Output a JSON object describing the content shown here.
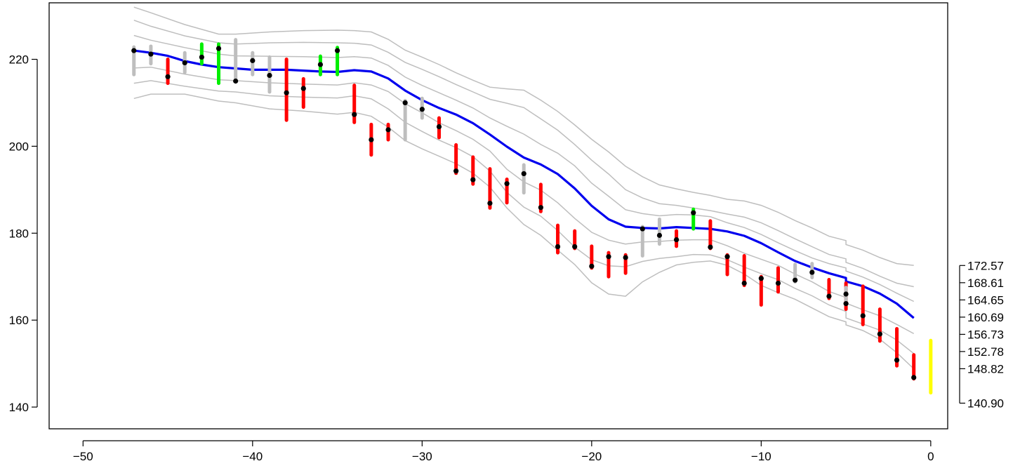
{
  "chart_data": {
    "type": "line",
    "title": "",
    "xlabel": "",
    "ylabel": "",
    "xlim": [
      -52,
      1
    ],
    "ylim": [
      135,
      233
    ],
    "x_ticks": [
      -50,
      -40,
      -30,
      -20,
      -10,
      0
    ],
    "x_tick_labels": [
      "−50",
      "−40",
      "−30",
      "−20",
      "−10",
      "0"
    ],
    "y_ticks": [
      140,
      160,
      180,
      200,
      220
    ],
    "y_tick_labels": [
      "140",
      "160",
      "180",
      "200",
      "220"
    ],
    "right_ticks": [
      172.57,
      168.61,
      164.65,
      160.69,
      156.73,
      152.78,
      148.82,
      140.9
    ],
    "right_tick_labels": [
      "172.57",
      "168.61",
      "164.65",
      "160.69",
      "156.73",
      "152.78",
      "148.82",
      "140.90"
    ],
    "grid": false,
    "colors": {
      "trend": "#0000ee",
      "band": "#bebebe",
      "below": "#ff0000",
      "above": "#00ee00",
      "neutral": "#bebebe",
      "forecast": "#ffff00",
      "point": "#000000"
    },
    "trend": {
      "x": [
        -47,
        -46,
        -45,
        -44,
        -43,
        -42,
        -41,
        -40,
        -39,
        -38,
        -37,
        -36,
        -35,
        -34,
        -33,
        -32,
        -31,
        -30,
        -29,
        -28,
        -27,
        -26,
        -25,
        -24,
        -23,
        -22,
        -21,
        -20,
        -19,
        -18,
        -17,
        -16,
        -15,
        -14,
        -13,
        -12,
        -11,
        -10,
        -9,
        -8,
        -7,
        -6,
        -5,
        -5,
        -4,
        -3,
        -2,
        -1
      ],
      "y": [
        222,
        221.5,
        220.8,
        219.6,
        218.8,
        218.2,
        217.9,
        217.6,
        217.6,
        217.6,
        217.4,
        217.2,
        217.1,
        217.5,
        217.2,
        215.6,
        212.8,
        210.6,
        208.8,
        207.3,
        205.3,
        202.7,
        199.9,
        197.4,
        195.8,
        193.6,
        190.3,
        186.3,
        183.2,
        181.5,
        181.2,
        181.1,
        181.4,
        181.2,
        181.0,
        180.4,
        179.4,
        177.7,
        175.6,
        173.6,
        172.1,
        170.8,
        169.7,
        168.9,
        167.8,
        166.1,
        163.8,
        160.5
      ]
    },
    "bands": [
      {
        "x": [
          -47,
          -46,
          -44,
          -42,
          -41,
          -39,
          -37,
          -35,
          -34,
          -33,
          -32,
          -31,
          -30,
          -29,
          -28,
          -27,
          -26,
          -25,
          -24,
          -23,
          -22,
          -21,
          -20,
          -19,
          -18,
          -17,
          -16,
          -15,
          -14,
          -13,
          -12,
          -11,
          -10,
          -9,
          -8,
          -7,
          -6,
          -5,
          -5,
          -4,
          -3,
          -2,
          -1
        ],
        "y": [
          232,
          230.7,
          228,
          225.8,
          225.8,
          226.3,
          226.6,
          226.7,
          226.6,
          226.3,
          224.6,
          222.1,
          220.5,
          218.8,
          216.9,
          215.2,
          213.6,
          213.2,
          212.9,
          210.6,
          208.0,
          204.9,
          201.6,
          198.7,
          195.4,
          193.0,
          191.1,
          190.2,
          189.4,
          188.7,
          187.8,
          187.4,
          186.4,
          184.8,
          182.9,
          181.2,
          179.3,
          178.3,
          177.4,
          176.1,
          174.4,
          173.0,
          172.6
        ]
      },
      {
        "x": [
          -47,
          -46,
          -44,
          -42,
          -41,
          -39,
          -37,
          -35,
          -34,
          -33,
          -32,
          -31,
          -30,
          -29,
          -28,
          -27,
          -26,
          -25,
          -24,
          -23,
          -22,
          -21,
          -20,
          -19,
          -18,
          -17,
          -16,
          -15,
          -14,
          -13,
          -12,
          -11,
          -10,
          -9,
          -8,
          -7,
          -6,
          -5,
          -5,
          -4,
          -3,
          -2,
          -1
        ],
        "y": [
          229,
          227.6,
          225.4,
          223.8,
          223.5,
          223.8,
          223.9,
          223.8,
          223.7,
          223.3,
          221.6,
          219.3,
          217.7,
          216.0,
          214.2,
          212.5,
          210.8,
          209.9,
          208.9,
          206.3,
          203.7,
          200.4,
          196.8,
          193.6,
          190.0,
          188.1,
          186.8,
          186.4,
          185.8,
          185.2,
          184.4,
          183.7,
          182.4,
          180.6,
          178.7,
          176.9,
          175.1,
          174.1,
          173.3,
          171.9,
          170.1,
          168.5,
          167.7
        ]
      },
      {
        "x": [
          -47,
          -46,
          -44,
          -42,
          -41,
          -39,
          -37,
          -35,
          -34,
          -33,
          -32,
          -31,
          -30,
          -29,
          -28,
          -27,
          -26,
          -25,
          -24,
          -23,
          -22,
          -21,
          -20,
          -19,
          -18,
          -17,
          -16,
          -15,
          -14,
          -13,
          -12,
          -11,
          -10,
          -9,
          -8,
          -7,
          -6,
          -5,
          -5,
          -4,
          -3,
          -2,
          -1
        ],
        "y": [
          225.5,
          224.4,
          222.7,
          221.2,
          220.8,
          220.7,
          220.6,
          220.4,
          220.6,
          220.3,
          218.6,
          215.9,
          214.0,
          212.3,
          210.6,
          208.8,
          206.5,
          204.6,
          202.8,
          200.4,
          198.4,
          195.5,
          191.5,
          188.5,
          185.4,
          184.5,
          184.0,
          184.3,
          184.2,
          183.8,
          182.4,
          181.3,
          179.7,
          177.8,
          176.0,
          174.3,
          173.0,
          172.0,
          171.3,
          169.9,
          168.2,
          166.2,
          164.3
        ]
      },
      {
        "x": [
          -47,
          -46,
          -44,
          -42,
          -41,
          -39,
          -37,
          -35,
          -34,
          -33,
          -32,
          -31,
          -30,
          -29,
          -28,
          -27,
          -26,
          -25,
          -24,
          -23,
          -22,
          -21,
          -20,
          -19,
          -18,
          -17,
          -16,
          -15,
          -14,
          -13,
          -12,
          -11,
          -10,
          -9,
          -8,
          -7,
          -6,
          -5,
          -5,
          -4,
          -3,
          -2,
          -1
        ],
        "y": [
          218.0,
          218.2,
          216.6,
          215.3,
          215.1,
          214.6,
          214.3,
          214.1,
          214.6,
          214.1,
          212.6,
          209.8,
          207.7,
          205.4,
          203.6,
          201.6,
          198.9,
          194.7,
          191.8,
          189.9,
          187.0,
          183.4,
          180.2,
          178.4,
          177.5,
          178.0,
          178.1,
          178.4,
          178.5,
          178.5,
          177.1,
          175.4,
          174.0,
          172.6,
          170.6,
          168.8,
          166.6,
          165.2,
          163.9,
          162.4,
          161.0,
          159.0,
          156.9
        ]
      },
      {
        "x": [
          -47,
          -46,
          -44,
          -42,
          -41,
          -39,
          -37,
          -35,
          -34,
          -33,
          -32,
          -31,
          -30,
          -29,
          -28,
          -27,
          -26,
          -25,
          -24,
          -23,
          -22,
          -21,
          -20,
          -19,
          -18,
          -17,
          -16,
          -15,
          -14,
          -13,
          -12,
          -11,
          -10,
          -9,
          -8,
          -7,
          -6,
          -5,
          -5,
          -4,
          -3,
          -2,
          -1
        ],
        "y": [
          214.5,
          215.1,
          213.8,
          212.7,
          212.5,
          211.6,
          211.3,
          211.1,
          211.6,
          210.9,
          208.6,
          205.5,
          203.4,
          201.4,
          199.7,
          197.6,
          194.3,
          189.4,
          186.0,
          183.9,
          180.6,
          176.8,
          173.9,
          172.5,
          172.3,
          173.5,
          174.2,
          174.6,
          175.1,
          175.0,
          173.9,
          172.2,
          170.7,
          169.3,
          167.3,
          165.6,
          163.5,
          162.0,
          160.5,
          159.1,
          157.7,
          155.4,
          152.3
        ]
      },
      {
        "x": [
          -47,
          -46,
          -44,
          -42,
          -41,
          -39,
          -37,
          -35,
          -34,
          -33,
          -32,
          -31,
          -30,
          -29,
          -28,
          -27,
          -26,
          -25,
          -24,
          -23,
          -22,
          -21,
          -20,
          -19,
          -18,
          -17,
          -16,
          -15,
          -14,
          -13,
          -12,
          -11,
          -10,
          -9,
          -8,
          -7,
          -6,
          -5,
          -5,
          -4,
          -3,
          -2,
          -1
        ],
        "y": [
          211.0,
          212.0,
          212.0,
          210.4,
          210.0,
          208.6,
          208.1,
          207.4,
          207.8,
          206.9,
          204.4,
          201.3,
          199.4,
          197.7,
          196.0,
          193.8,
          190.6,
          185.8,
          182.0,
          179.5,
          176.1,
          172.8,
          168.6,
          166.0,
          165.5,
          168.8,
          171.0,
          172.7,
          173.3,
          173.6,
          172.6,
          170.6,
          168.0,
          166.3,
          164.8,
          162.8,
          160.8,
          159.6,
          158.9,
          157.6,
          155.6,
          152.5,
          148.8
        ]
      }
    ],
    "observations": [
      {
        "x": -47,
        "y": 222.0,
        "lo": 216.5,
        "hi": 222.8,
        "color": "neutral"
      },
      {
        "x": -46,
        "y": 221.2,
        "lo": 219.0,
        "hi": 223.0,
        "color": "neutral"
      },
      {
        "x": -45,
        "y": 216.0,
        "lo": 214.5,
        "hi": 220.0,
        "color": "below"
      },
      {
        "x": -44,
        "y": 219.2,
        "lo": 217.0,
        "hi": 221.5,
        "color": "neutral"
      },
      {
        "x": -43,
        "y": 220.5,
        "lo": 219.0,
        "hi": 223.5,
        "color": "above"
      },
      {
        "x": -42,
        "y": 222.5,
        "lo": 214.5,
        "hi": 223.5,
        "color": "above"
      },
      {
        "x": -41,
        "y": 215.0,
        "lo": 214.8,
        "hi": 224.5,
        "color": "neutral"
      },
      {
        "x": -40,
        "y": 219.7,
        "lo": 216.5,
        "hi": 221.5,
        "color": "neutral"
      },
      {
        "x": -39,
        "y": 216.3,
        "lo": 212.5,
        "hi": 220.5,
        "color": "neutral"
      },
      {
        "x": -38,
        "y": 212.3,
        "lo": 206.0,
        "hi": 220.0,
        "color": "below"
      },
      {
        "x": -37,
        "y": 213.3,
        "lo": 209.0,
        "hi": 215.5,
        "color": "below"
      },
      {
        "x": -36,
        "y": 218.8,
        "lo": 216.5,
        "hi": 220.7,
        "color": "above"
      },
      {
        "x": -35,
        "y": 222.0,
        "lo": 216.5,
        "hi": 222.7,
        "color": "above"
      },
      {
        "x": -34,
        "y": 207.3,
        "lo": 205.5,
        "hi": 214.0,
        "color": "below"
      },
      {
        "x": -33,
        "y": 201.5,
        "lo": 198.0,
        "hi": 205.0,
        "color": "below"
      },
      {
        "x": -32,
        "y": 203.8,
        "lo": 201.5,
        "hi": 205.0,
        "color": "below"
      },
      {
        "x": -31,
        "y": 210.0,
        "lo": 201.5,
        "hi": 210.5,
        "color": "neutral"
      },
      {
        "x": -30,
        "y": 208.5,
        "lo": 206.5,
        "hi": 211.0,
        "color": "neutral"
      },
      {
        "x": -29,
        "y": 204.5,
        "lo": 202.0,
        "hi": 206.5,
        "color": "below"
      },
      {
        "x": -28,
        "y": 194.3,
        "lo": 193.8,
        "hi": 200.3,
        "color": "below"
      },
      {
        "x": -27,
        "y": 192.3,
        "lo": 191.3,
        "hi": 197.5,
        "color": "below"
      },
      {
        "x": -26,
        "y": 186.9,
        "lo": 185.8,
        "hi": 194.8,
        "color": "below"
      },
      {
        "x": -25,
        "y": 191.4,
        "lo": 187.0,
        "hi": 192.4,
        "color": "below"
      },
      {
        "x": -24,
        "y": 193.7,
        "lo": 189.3,
        "hi": 195.7,
        "color": "neutral"
      },
      {
        "x": -23,
        "y": 185.9,
        "lo": 185.0,
        "hi": 191.2,
        "color": "below"
      },
      {
        "x": -22,
        "y": 176.9,
        "lo": 175.5,
        "hi": 181.8,
        "color": "below"
      },
      {
        "x": -21,
        "y": 176.9,
        "lo": 176.5,
        "hi": 180.5,
        "color": "below"
      },
      {
        "x": -20,
        "y": 172.4,
        "lo": 172.0,
        "hi": 177.0,
        "color": "below"
      },
      {
        "x": -19,
        "y": 174.6,
        "lo": 170.0,
        "hi": 175.5,
        "color": "below"
      },
      {
        "x": -18,
        "y": 174.4,
        "lo": 170.8,
        "hi": 175.0,
        "color": "below"
      },
      {
        "x": -17,
        "y": 181.0,
        "lo": 174.8,
        "hi": 181.5,
        "color": "neutral"
      },
      {
        "x": -16,
        "y": 179.5,
        "lo": 177.5,
        "hi": 183.2,
        "color": "neutral"
      },
      {
        "x": -15,
        "y": 178.5,
        "lo": 177.0,
        "hi": 180.5,
        "color": "below"
      },
      {
        "x": -14,
        "y": 184.7,
        "lo": 181.0,
        "hi": 185.5,
        "color": "above"
      },
      {
        "x": -13,
        "y": 176.8,
        "lo": 176.5,
        "hi": 182.8,
        "color": "below"
      },
      {
        "x": -12,
        "y": 174.6,
        "lo": 170.5,
        "hi": 175.0,
        "color": "below"
      },
      {
        "x": -11,
        "y": 168.5,
        "lo": 168.0,
        "hi": 174.8,
        "color": "below"
      },
      {
        "x": -10,
        "y": 169.6,
        "lo": 163.5,
        "hi": 170.0,
        "color": "below"
      },
      {
        "x": -9,
        "y": 168.5,
        "lo": 166.5,
        "hi": 172.0,
        "color": "below"
      },
      {
        "x": -8,
        "y": 169.2,
        "lo": 168.8,
        "hi": 172.8,
        "color": "neutral"
      },
      {
        "x": -7,
        "y": 171.0,
        "lo": 169.8,
        "hi": 173.0,
        "color": "neutral"
      },
      {
        "x": -6,
        "y": 165.5,
        "lo": 165.0,
        "hi": 169.3,
        "color": "below"
      },
      {
        "x": -5,
        "y": 163.8,
        "lo": 162.5,
        "hi": 168.5,
        "color": "below"
      },
      {
        "x": -5,
        "y": 166.0,
        "lo": 164.5,
        "hi": 167.5,
        "color": "neutral"
      },
      {
        "x": -4,
        "y": 161.0,
        "lo": 159.0,
        "hi": 167.8,
        "color": "below"
      },
      {
        "x": -3,
        "y": 156.8,
        "lo": 155.2,
        "hi": 162.5,
        "color": "below"
      },
      {
        "x": -2,
        "y": 150.8,
        "lo": 149.5,
        "hi": 158.0,
        "color": "below"
      },
      {
        "x": -1,
        "y": 146.8,
        "lo": 146.5,
        "hi": 152.0,
        "color": "below"
      }
    ],
    "forecast_interval": {
      "x": 0,
      "lo": 143.3,
      "hi": 155.3
    }
  }
}
